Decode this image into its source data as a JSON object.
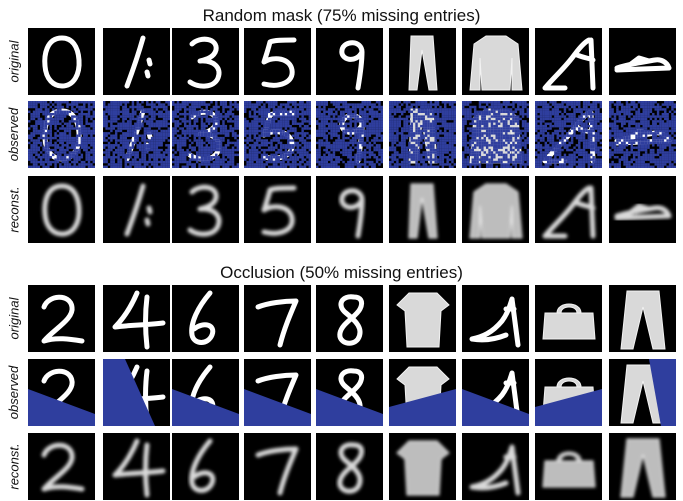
{
  "figure": {
    "sections": [
      {
        "id": "random-mask",
        "title": "Random mask (75% missing entries)",
        "mask_type": "random",
        "missing_fraction": 0.75,
        "rows": [
          {
            "label": "original",
            "kind": "original"
          },
          {
            "label": "observed",
            "kind": "observed"
          },
          {
            "label": "reconst.",
            "kind": "reconst"
          }
        ],
        "columns": [
          {
            "item": "digit-0"
          },
          {
            "item": "digit-1"
          },
          {
            "item": "digit-3"
          },
          {
            "item": "digit-5"
          },
          {
            "item": "digit-9"
          },
          {
            "item": "trousers"
          },
          {
            "item": "pullover"
          },
          {
            "item": "sandal"
          },
          {
            "item": "flat-shoe"
          }
        ]
      },
      {
        "id": "occlusion",
        "title": "Occlusion (50% missing entries)",
        "mask_type": "occlusion",
        "missing_fraction": 0.5,
        "rows": [
          {
            "label": "original",
            "kind": "original"
          },
          {
            "label": "observed",
            "kind": "observed"
          },
          {
            "label": "reconst.",
            "kind": "reconst"
          }
        ],
        "columns": [
          {
            "item": "digit-2",
            "occlusion_side": "bottom-left"
          },
          {
            "item": "digit-4",
            "occlusion_side": "left"
          },
          {
            "item": "digit-6",
            "occlusion_side": "bottom-left"
          },
          {
            "item": "digit-7",
            "occlusion_side": "bottom-left"
          },
          {
            "item": "digit-8",
            "occlusion_side": "bottom-left"
          },
          {
            "item": "tshirt",
            "occlusion_side": "bottom"
          },
          {
            "item": "heel",
            "occlusion_side": "bottom-left"
          },
          {
            "item": "bag",
            "occlusion_side": "bottom"
          },
          {
            "item": "trousers-2",
            "occlusion_side": "right"
          }
        ]
      }
    ],
    "colors": {
      "mask_blue": "#2f3e9e",
      "background": "#000000",
      "foreground": "#ffffff",
      "text": "#111111"
    }
  }
}
